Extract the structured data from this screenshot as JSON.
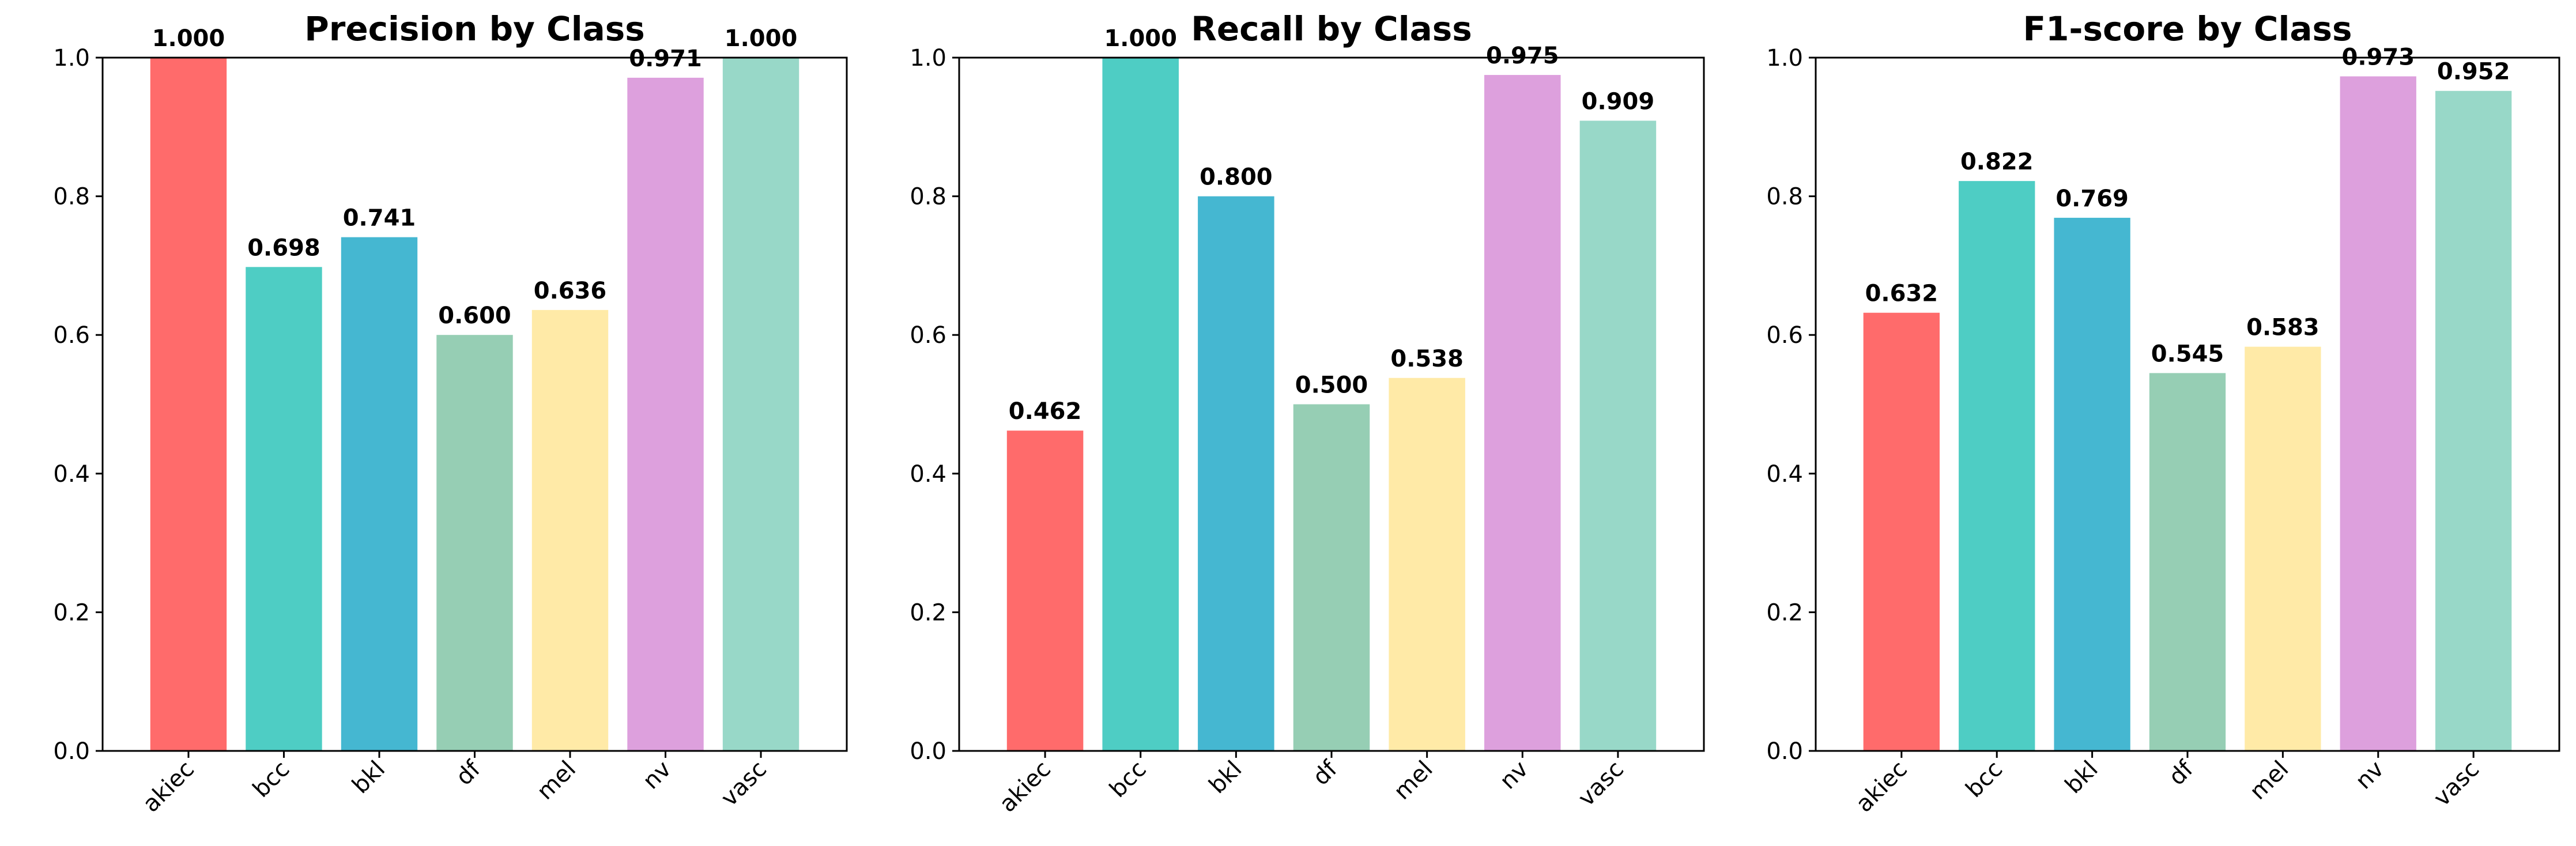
{
  "chart_data": [
    {
      "type": "bar",
      "title": "Precision by Class",
      "categories": [
        "akiec",
        "bcc",
        "bkl",
        "df",
        "mel",
        "nv",
        "vasc"
      ],
      "values": [
        1.0,
        0.698,
        0.741,
        0.6,
        0.636,
        0.971,
        1.0
      ],
      "value_labels": [
        "1.000",
        "0.698",
        "0.741",
        "0.600",
        "0.636",
        "0.971",
        "1.000"
      ],
      "ylim": [
        0,
        1.0
      ],
      "yticks": [
        "0.0",
        "0.2",
        "0.4",
        "0.6",
        "0.8",
        "1.0"
      ],
      "grid": false,
      "xlabel": "",
      "ylabel": ""
    },
    {
      "type": "bar",
      "title": "Recall by Class",
      "categories": [
        "akiec",
        "bcc",
        "bkl",
        "df",
        "mel",
        "nv",
        "vasc"
      ],
      "values": [
        0.462,
        1.0,
        0.8,
        0.5,
        0.538,
        0.975,
        0.909
      ],
      "value_labels": [
        "0.462",
        "1.000",
        "0.800",
        "0.500",
        "0.538",
        "0.975",
        "0.909"
      ],
      "ylim": [
        0,
        1.0
      ],
      "yticks": [
        "0.0",
        "0.2",
        "0.4",
        "0.6",
        "0.8",
        "1.0"
      ],
      "grid": false,
      "xlabel": "",
      "ylabel": ""
    },
    {
      "type": "bar",
      "title": "F1-score by Class",
      "categories": [
        "akiec",
        "bcc",
        "bkl",
        "df",
        "mel",
        "nv",
        "vasc"
      ],
      "values": [
        0.632,
        0.822,
        0.769,
        0.545,
        0.583,
        0.973,
        0.952
      ],
      "value_labels": [
        "0.632",
        "0.822",
        "0.769",
        "0.545",
        "0.583",
        "0.973",
        "0.952"
      ],
      "ylim": [
        0,
        1.0
      ],
      "yticks": [
        "0.0",
        "0.2",
        "0.4",
        "0.6",
        "0.8",
        "1.0"
      ],
      "grid": false,
      "xlabel": "",
      "ylabel": ""
    }
  ],
  "colors": [
    "#ff6b6b",
    "#4ecdc4",
    "#45b7d1",
    "#96ceb4",
    "#ffeaa7",
    "#dda0dd",
    "#98d8c8"
  ]
}
